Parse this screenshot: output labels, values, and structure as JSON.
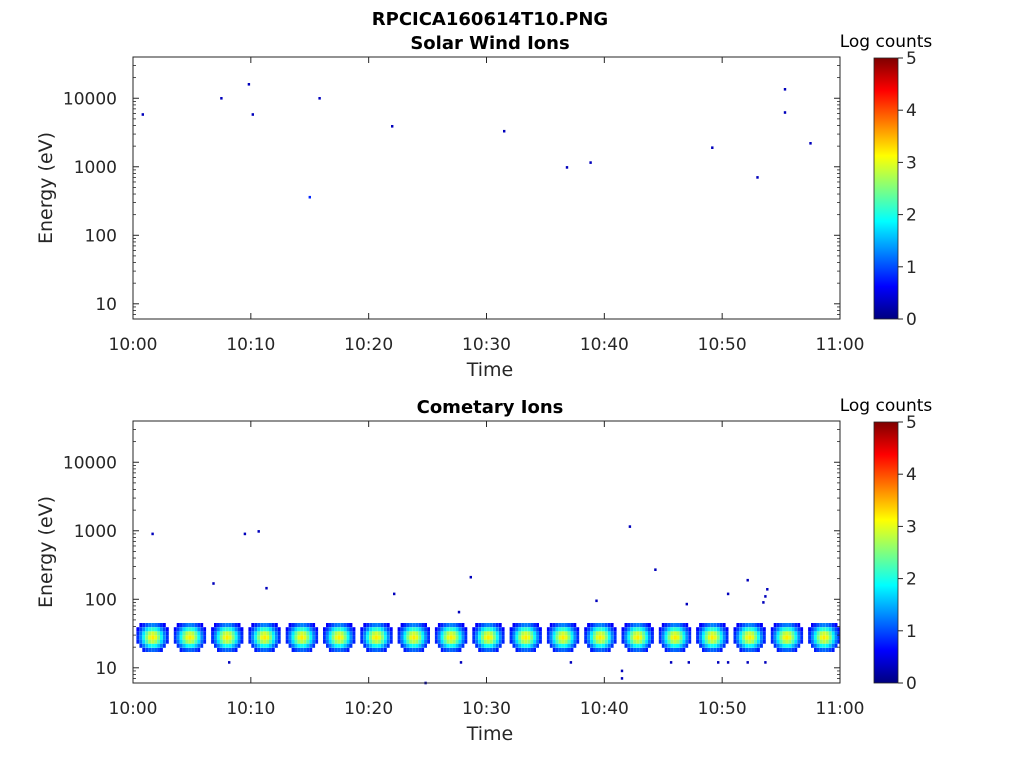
{
  "figure_title": "RPCICA160614T10.PNG",
  "colorbar_scale": [
    "#00007f",
    "#0000ff",
    "#007fff",
    "#00ffff",
    "#7fff7f",
    "#ffff00",
    "#ff7f00",
    "#ff0000",
    "#7f0000"
  ],
  "chart_data": [
    {
      "type": "heatmap",
      "title": "Solar Wind Ions",
      "xlabel": "Time",
      "ylabel": "Energy (eV)",
      "yscale": "log",
      "xlim": [
        "10:00",
        "11:00"
      ],
      "ylim": [
        6,
        40000
      ],
      "xticks": [
        "10:00",
        "10:10",
        "10:20",
        "10:30",
        "10:40",
        "10:50",
        "11:00"
      ],
      "yticks": [
        10,
        100,
        1000,
        10000
      ],
      "ytick_labels": [
        "10",
        "100",
        "1000",
        "10000"
      ],
      "colorbar": {
        "label": "Log counts",
        "range": [
          0,
          5
        ],
        "ticks": [
          "0",
          "1",
          "2",
          "3",
          "4",
          "5"
        ]
      },
      "points": [
        {
          "t": "10:00:50",
          "energy": 5800,
          "log_counts": 0.3
        },
        {
          "t": "10:07:30",
          "energy": 10000,
          "log_counts": 0.3
        },
        {
          "t": "10:09:50",
          "energy": 16000,
          "log_counts": 0.3
        },
        {
          "t": "10:10:10",
          "energy": 5800,
          "log_counts": 0.3
        },
        {
          "t": "10:15:00",
          "energy": 360,
          "log_counts": 0.8
        },
        {
          "t": "10:15:50",
          "energy": 10000,
          "log_counts": 0.3
        },
        {
          "t": "10:22:00",
          "energy": 3900,
          "log_counts": 0.3
        },
        {
          "t": "10:31:30",
          "energy": 3300,
          "log_counts": 0.3
        },
        {
          "t": "10:36:50",
          "energy": 980,
          "log_counts": 0.3
        },
        {
          "t": "10:38:50",
          "energy": 1150,
          "log_counts": 0.3
        },
        {
          "t": "10:49:10",
          "energy": 1900,
          "log_counts": 0.3
        },
        {
          "t": "10:53:00",
          "energy": 700,
          "log_counts": 0.3
        },
        {
          "t": "10:55:20",
          "energy": 13500,
          "log_counts": 0.3
        },
        {
          "t": "10:55:20",
          "energy": 6200,
          "log_counts": 0.3
        },
        {
          "t": "10:57:30",
          "energy": 2200,
          "log_counts": 0.3
        }
      ]
    },
    {
      "type": "heatmap",
      "title": "Cometary Ions",
      "xlabel": "Time",
      "ylabel": "Energy (eV)",
      "yscale": "log",
      "xlim": [
        "10:00",
        "11:00"
      ],
      "ylim": [
        6,
        40000
      ],
      "xticks": [
        "10:00",
        "10:10",
        "10:20",
        "10:30",
        "10:40",
        "10:50",
        "11:00"
      ],
      "yticks": [
        10,
        100,
        1000,
        10000
      ],
      "ytick_labels": [
        "10",
        "100",
        "1000",
        "10000"
      ],
      "colorbar": {
        "label": "Log counts",
        "range": [
          0,
          5
        ],
        "ticks": [
          "0",
          "1",
          "2",
          "3",
          "4",
          "5"
        ]
      },
      "bursts": {
        "energy_range_eV": [
          17,
          45
        ],
        "peak_energy_eV": 28,
        "peak_log_counts": 3.0,
        "centers": [
          "10:01:40",
          "10:04:50",
          "10:08:00",
          "10:11:10",
          "10:14:20",
          "10:17:30",
          "10:20:40",
          "10:23:50",
          "10:27:00",
          "10:30:10",
          "10:33:20",
          "10:36:30",
          "10:39:40",
          "10:42:50",
          "10:46:00",
          "10:49:10",
          "10:52:20",
          "10:55:30",
          "10:58:40"
        ]
      },
      "points": [
        {
          "t": "10:01:40",
          "energy": 900,
          "log_counts": 0.3
        },
        {
          "t": "10:06:50",
          "energy": 170,
          "log_counts": 0.3
        },
        {
          "t": "10:09:30",
          "energy": 900,
          "log_counts": 0.3
        },
        {
          "t": "10:10:40",
          "energy": 980,
          "log_counts": 0.3
        },
        {
          "t": "10:11:20",
          "energy": 145,
          "log_counts": 0.3
        },
        {
          "t": "10:22:10",
          "energy": 120,
          "log_counts": 0.3
        },
        {
          "t": "10:27:40",
          "energy": 65,
          "log_counts": 0.3
        },
        {
          "t": "10:28:40",
          "energy": 210,
          "log_counts": 0.3
        },
        {
          "t": "10:39:20",
          "energy": 95,
          "log_counts": 0.3
        },
        {
          "t": "10:42:10",
          "energy": 1150,
          "log_counts": 0.3
        },
        {
          "t": "10:44:20",
          "energy": 270,
          "log_counts": 0.3
        },
        {
          "t": "10:47:00",
          "energy": 85,
          "log_counts": 0.3
        },
        {
          "t": "10:50:30",
          "energy": 120,
          "log_counts": 0.3
        },
        {
          "t": "10:52:10",
          "energy": 190,
          "log_counts": 0.3
        },
        {
          "t": "10:53:50",
          "energy": 140,
          "log_counts": 0.3
        },
        {
          "t": "10:53:40",
          "energy": 110,
          "log_counts": 0.3
        },
        {
          "t": "10:53:30",
          "energy": 90,
          "log_counts": 0.3
        },
        {
          "t": "10:24:50",
          "energy": 6,
          "log_counts": 0.3
        },
        {
          "t": "10:41:30",
          "energy": 7,
          "log_counts": 0.3
        },
        {
          "t": "10:41:30",
          "energy": 9,
          "log_counts": 0.3
        },
        {
          "t": "10:08:10",
          "energy": 12,
          "log_counts": 0.3
        },
        {
          "t": "10:27:50",
          "energy": 12,
          "log_counts": 0.3
        },
        {
          "t": "10:37:10",
          "energy": 12,
          "log_counts": 0.3
        },
        {
          "t": "10:45:40",
          "energy": 12,
          "log_counts": 0.3
        },
        {
          "t": "10:47:10",
          "energy": 12,
          "log_counts": 0.3
        },
        {
          "t": "10:49:40",
          "energy": 12,
          "log_counts": 0.3
        },
        {
          "t": "10:50:30",
          "energy": 12,
          "log_counts": 0.3
        },
        {
          "t": "10:52:10",
          "energy": 12,
          "log_counts": 0.3
        },
        {
          "t": "10:53:40",
          "energy": 12,
          "log_counts": 0.3
        }
      ]
    }
  ]
}
